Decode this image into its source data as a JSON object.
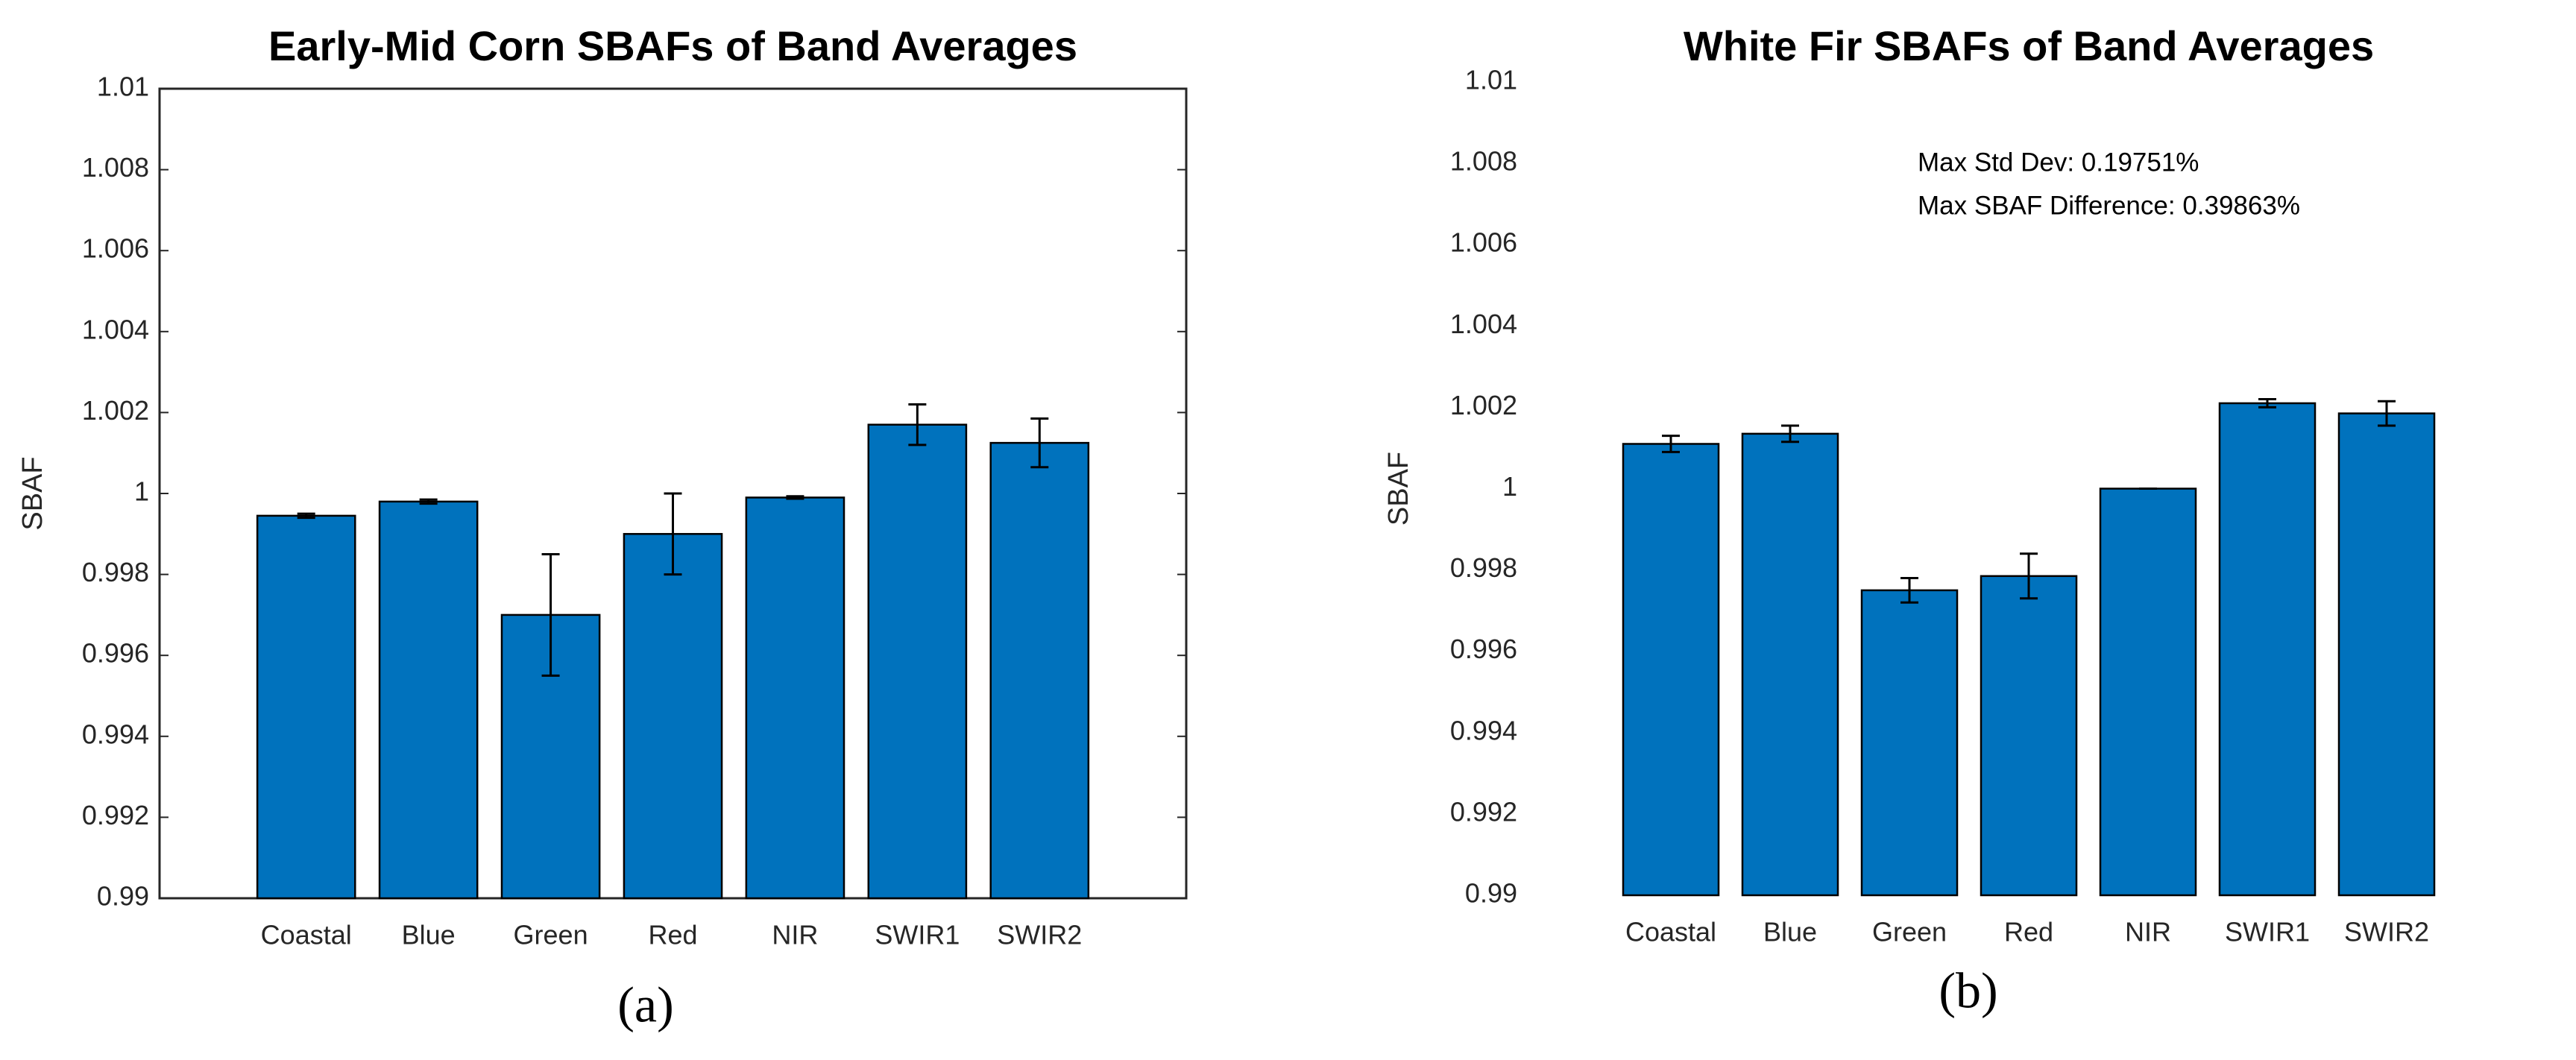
{
  "chart_data": [
    {
      "type": "bar",
      "title": "Early-Mid Corn SBAFs of Band Averages",
      "ylabel": "SBAF",
      "caption": "(a)",
      "categories": [
        "Coastal",
        "Blue",
        "Green",
        "Red",
        "NIR",
        "SWIR1",
        "SWIR2"
      ],
      "series": [
        {
          "color": "#0072bd",
          "values": [
            0.99945,
            0.9998,
            0.997,
            0.999,
            0.9999,
            1.0017,
            1.00125
          ],
          "errors": [
            5e-05,
            5e-05,
            0.0015,
            0.001,
            3e-05,
            0.0005,
            0.0006
          ]
        }
      ],
      "ylim": [
        0.99,
        1.01
      ],
      "yticks": [
        0.99,
        0.992,
        0.994,
        0.996,
        0.998,
        1,
        1.002,
        1.004,
        1.006,
        1.008,
        1.01
      ],
      "box": true
    },
    {
      "type": "bar",
      "title": "White Fir SBAFs of Band Averages",
      "ylabel": "SBAF",
      "caption": "(b)",
      "annotations": [
        "Max Std Dev: 0.19751%",
        "Max SBAF Difference: 0.39863%"
      ],
      "categories": [
        "Coastal",
        "Blue",
        "Green",
        "Red",
        "NIR",
        "SWIR1",
        "SWIR2"
      ],
      "series": [
        {
          "color": "#0072bd",
          "values": [
            1.0011,
            1.00135,
            0.9975,
            0.99785,
            1,
            1.0021,
            1.00185
          ],
          "errors": [
            0.0002,
            0.0002,
            0.0003,
            0.00055,
            0,
            0.0001,
            0.0003
          ]
        }
      ],
      "ylim": [
        0.99,
        1.01
      ],
      "yticks": [
        0.99,
        0.992,
        0.994,
        0.996,
        0.998,
        1,
        1.002,
        1.004,
        1.006,
        1.008,
        1.01
      ],
      "box": false
    }
  ]
}
